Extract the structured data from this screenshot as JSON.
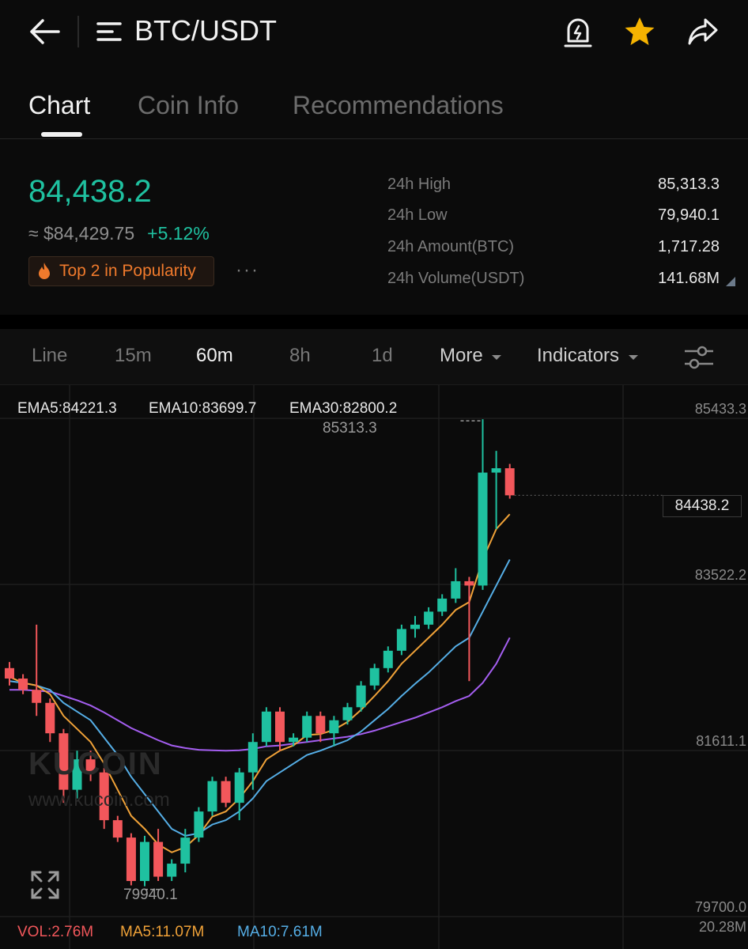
{
  "header": {
    "pair": "BTC/USDT",
    "icons": [
      "back-arrow-icon",
      "menu-icon",
      "price-alert-icon",
      "favorite-star-icon",
      "share-icon"
    ],
    "accent_star": "#f5b301"
  },
  "tabs": [
    {
      "label": "Chart",
      "active": true
    },
    {
      "label": "Coin Info",
      "active": false
    },
    {
      "label": "Recommendations",
      "active": false
    }
  ],
  "ticker": {
    "last_price": "84,438.2",
    "fiat_price": "≈ $84,429.75",
    "change": "+5.12%",
    "badge": "Top 2 in Popularity",
    "more": "···",
    "up_color": "#1fc1a0",
    "down_color": "#f2575b"
  },
  "stats": [
    {
      "label": "24h High",
      "value": "85,313.3"
    },
    {
      "label": "24h Low",
      "value": "79,940.1"
    },
    {
      "label": "24h Amount(BTC)",
      "value": "1,717.28"
    },
    {
      "label": "24h Volume(USDT)",
      "value": "141.68M"
    }
  ],
  "timeframes": {
    "items": [
      "Line",
      "15m",
      "60m",
      "8h",
      "1d"
    ],
    "active": "60m",
    "more": "More",
    "indicators": "Indicators"
  },
  "indicators": {
    "ema5": "EMA5:84221.3",
    "ema10": "EMA10:83699.7",
    "ema30": "EMA30:82800.2",
    "ema5_color": "#f0a238",
    "ema10_color": "#55aee6",
    "ema30_color": "#a45ef0"
  },
  "volume": {
    "vol": "VOL:2.76M",
    "ma5": "MA5:11.07M",
    "ma10": "MA10:7.61M",
    "axis": "20.28M"
  },
  "chart_data": {
    "type": "candlestick",
    "y_axis_ticks": [
      "85433.3",
      "83522.2",
      "81611.1",
      "79700.0"
    ],
    "ylim": [
      79700.0,
      85433.3
    ],
    "current_price": "84438.2",
    "high_marker": "85313.3",
    "low_marker": "79940.1",
    "candles": [
      {
        "o": 82450,
        "h": 82520,
        "l": 82250,
        "c": 82330
      },
      {
        "o": 82330,
        "h": 82380,
        "l": 82150,
        "c": 82200
      },
      {
        "o": 82200,
        "h": 82950,
        "l": 81900,
        "c": 82050
      },
      {
        "o": 82050,
        "h": 82100,
        "l": 81600,
        "c": 81700
      },
      {
        "o": 81700,
        "h": 81750,
        "l": 80900,
        "c": 81050
      },
      {
        "o": 81050,
        "h": 81500,
        "l": 80950,
        "c": 81400
      },
      {
        "o": 81400,
        "h": 81500,
        "l": 81150,
        "c": 81250
      },
      {
        "o": 81250,
        "h": 81300,
        "l": 80600,
        "c": 80700
      },
      {
        "o": 80700,
        "h": 80750,
        "l": 80450,
        "c": 80500
      },
      {
        "o": 80500,
        "h": 80550,
        "l": 79950,
        "c": 80000
      },
      {
        "o": 80000,
        "h": 80520,
        "l": 79940,
        "c": 80450
      },
      {
        "o": 80450,
        "h": 80600,
        "l": 80000,
        "c": 80050
      },
      {
        "o": 80050,
        "h": 80250,
        "l": 80000,
        "c": 80200
      },
      {
        "o": 80200,
        "h": 80600,
        "l": 80100,
        "c": 80500
      },
      {
        "o": 80500,
        "h": 80850,
        "l": 80450,
        "c": 80800
      },
      {
        "o": 80800,
        "h": 81200,
        "l": 80750,
        "c": 81150
      },
      {
        "o": 81150,
        "h": 81200,
        "l": 80850,
        "c": 80900
      },
      {
        "o": 80900,
        "h": 81300,
        "l": 80700,
        "c": 81250
      },
      {
        "o": 81250,
        "h": 81700,
        "l": 81050,
        "c": 81600
      },
      {
        "o": 81600,
        "h": 82000,
        "l": 81550,
        "c": 81950
      },
      {
        "o": 81950,
        "h": 82000,
        "l": 81500,
        "c": 81600
      },
      {
        "o": 81600,
        "h": 81700,
        "l": 81550,
        "c": 81650
      },
      {
        "o": 81650,
        "h": 81950,
        "l": 81600,
        "c": 81900
      },
      {
        "o": 81900,
        "h": 81950,
        "l": 81600,
        "c": 81700
      },
      {
        "o": 81700,
        "h": 81900,
        "l": 81550,
        "c": 81850
      },
      {
        "o": 81850,
        "h": 82050,
        "l": 81800,
        "c": 82000
      },
      {
        "o": 82000,
        "h": 82300,
        "l": 81950,
        "c": 82250
      },
      {
        "o": 82250,
        "h": 82500,
        "l": 82200,
        "c": 82450
      },
      {
        "o": 82450,
        "h": 82700,
        "l": 82400,
        "c": 82650
      },
      {
        "o": 82650,
        "h": 82950,
        "l": 82600,
        "c": 82900
      },
      {
        "o": 82900,
        "h": 83050,
        "l": 82800,
        "c": 82950
      },
      {
        "o": 82950,
        "h": 83150,
        "l": 82900,
        "c": 83100
      },
      {
        "o": 83100,
        "h": 83300,
        "l": 83050,
        "c": 83250
      },
      {
        "o": 83250,
        "h": 83600,
        "l": 83200,
        "c": 83450
      },
      {
        "o": 83450,
        "h": 83500,
        "l": 82300,
        "c": 83400
      },
      {
        "o": 83400,
        "h": 85313.3,
        "l": 83350,
        "c": 84700
      },
      {
        "o": 84700,
        "h": 84950,
        "l": 84050,
        "c": 84750
      },
      {
        "o": 84750,
        "h": 84800,
        "l": 84400,
        "c": 84438.2
      }
    ],
    "ema5": [
      82350,
      82280,
      82250,
      82150,
      81900,
      81750,
      81600,
      81350,
      81050,
      80750,
      80600,
      80420,
      80330,
      80390,
      80530,
      80740,
      80800,
      80950,
      81150,
      81400,
      81500,
      81560,
      81680,
      81690,
      81740,
      81830,
      81970,
      82130,
      82300,
      82500,
      82650,
      82800,
      82950,
      83120,
      83210,
      83700,
      84050,
      84221.3
    ],
    "ema10": [
      82300,
      82280,
      82250,
      82200,
      82050,
      81950,
      81850,
      81650,
      81450,
      81200,
      81000,
      80800,
      80600,
      80520,
      80550,
      80650,
      80700,
      80800,
      80950,
      81150,
      81250,
      81350,
      81450,
      81500,
      81560,
      81620,
      81720,
      81850,
      81980,
      82130,
      82270,
      82400,
      82550,
      82700,
      82800,
      83100,
      83400,
      83699.7
    ],
    "ema30": [
      82200,
      82200,
      82190,
      82180,
      82130,
      82080,
      82020,
      81940,
      81850,
      81760,
      81690,
      81620,
      81560,
      81530,
      81510,
      81505,
      81500,
      81505,
      81520,
      81550,
      81560,
      81580,
      81600,
      81620,
      81640,
      81660,
      81690,
      81730,
      81780,
      81830,
      81880,
      81940,
      82000,
      82070,
      82130,
      82280,
      82500,
      82800.2
    ],
    "grid": true
  }
}
